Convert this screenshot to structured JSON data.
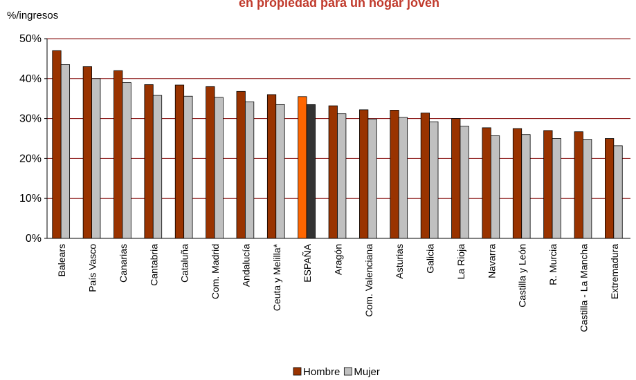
{
  "chart_data": {
    "type": "bar",
    "title": "en propiedad para un hogar joven",
    "y_label": "%/ingresos",
    "categories": [
      "Balears",
      "País Vasco",
      "Canarias",
      "Cantabria",
      "Cataluña",
      "Com. Madrid",
      "Andalucía",
      "Ceuta y Melilla*",
      "ESPAÑA",
      "Aragón",
      "Com. Valenciana",
      "Asturias",
      "Galicia",
      "La Rioja",
      "Navarra",
      "Castilla y León",
      "R. Murcia",
      "Castilla - La Mancha",
      "Extremadura"
    ],
    "series": [
      {
        "name": "Hombre",
        "color": "#993300",
        "values": [
          47,
          43,
          42,
          38.5,
          38.4,
          38,
          36.8,
          36,
          35.5,
          33.2,
          32.2,
          32.1,
          31.4,
          30,
          27.7,
          27.5,
          27,
          26.7,
          25
        ],
        "colors": [
          "#993300",
          "#993300",
          "#993300",
          "#993300",
          "#993300",
          "#993300",
          "#993300",
          "#993300",
          "#ff6600",
          "#993300",
          "#993300",
          "#993300",
          "#993300",
          "#993300",
          "#993300",
          "#993300",
          "#993300",
          "#993300",
          "#993300"
        ]
      },
      {
        "name": "Mujer",
        "color": "#c0c0c0",
        "values": [
          43.5,
          40,
          39,
          35.8,
          35.6,
          35.3,
          34.2,
          33.5,
          33.5,
          31.2,
          29.9,
          30.3,
          29.2,
          28.1,
          25.7,
          26,
          25,
          24.8,
          23.2
        ],
        "colors": [
          "#c0c0c0",
          "#c0c0c0",
          "#c0c0c0",
          "#c0c0c0",
          "#c0c0c0",
          "#c0c0c0",
          "#c0c0c0",
          "#c0c0c0",
          "#333333",
          "#c0c0c0",
          "#c0c0c0",
          "#c0c0c0",
          "#c0c0c0",
          "#c0c0c0",
          "#c0c0c0",
          "#c0c0c0",
          "#c0c0c0",
          "#c0c0c0",
          "#c0c0c0"
        ]
      }
    ],
    "ylim": [
      0,
      50
    ],
    "yticks": [
      {
        "value": 0,
        "label": "0%"
      },
      {
        "value": 10,
        "label": "10%"
      },
      {
        "value": 20,
        "label": "20%"
      },
      {
        "value": 30,
        "label": "30%"
      },
      {
        "value": 40,
        "label": "40%"
      },
      {
        "value": 50,
        "label": "50%"
      }
    ],
    "grid": true,
    "grid_color": "#800000",
    "legend": "bottom"
  }
}
